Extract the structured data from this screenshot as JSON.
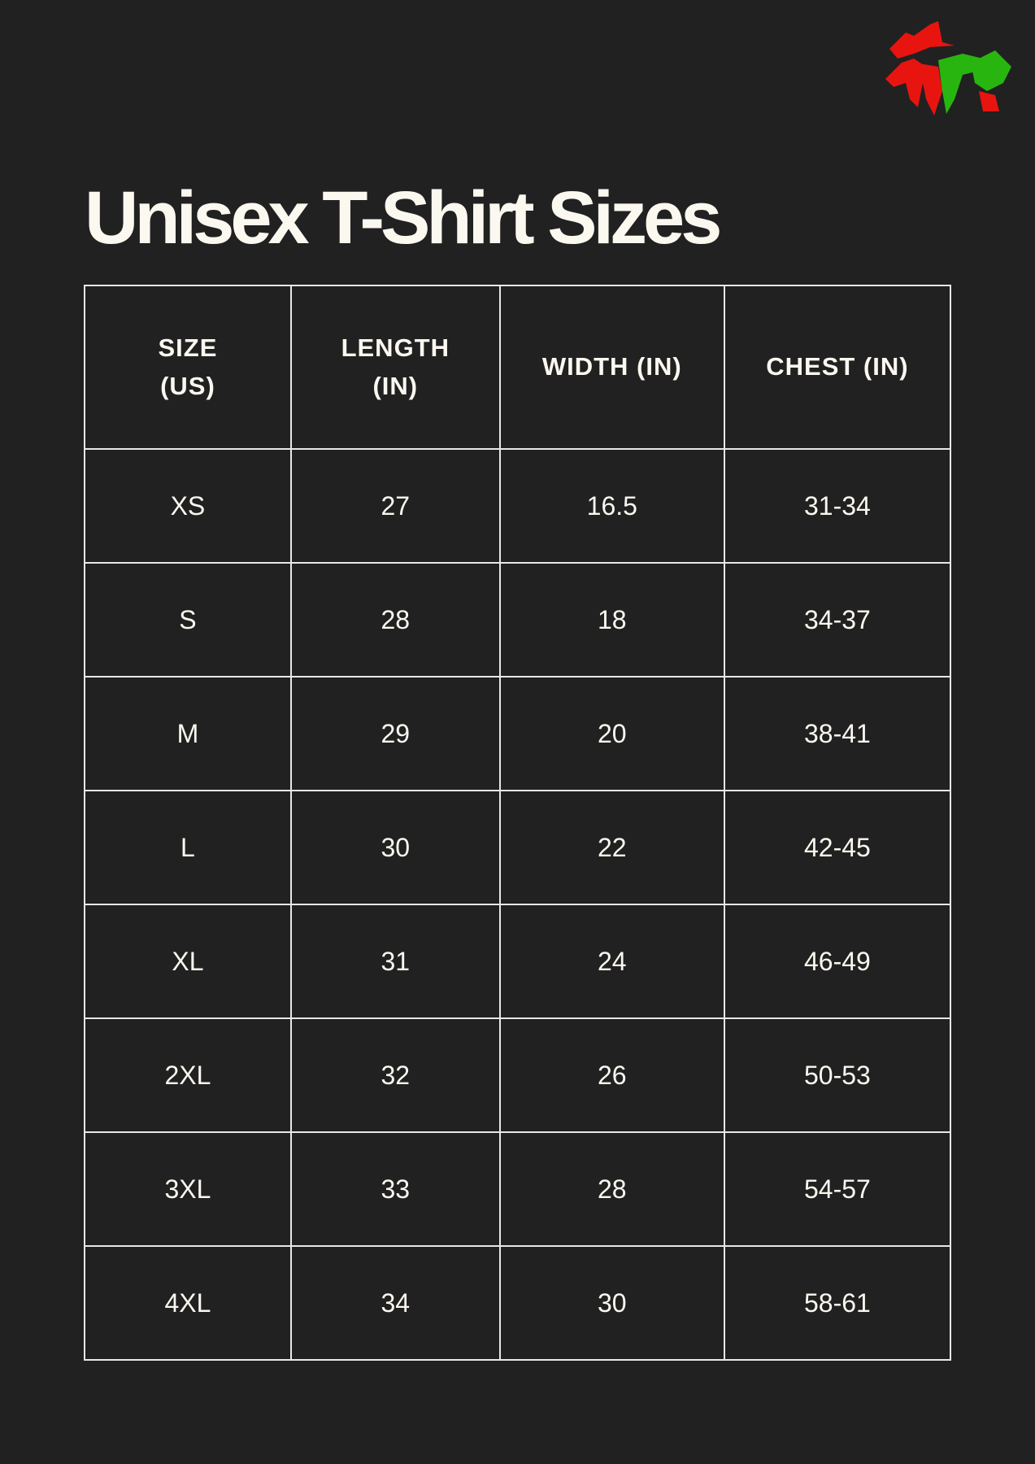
{
  "title": "Unisex T-Shirt Sizes",
  "logo": {
    "icon": "wizard-logo-icon",
    "colors": [
      "#e8140f",
      "#29b50f"
    ]
  },
  "table": {
    "headers": [
      "SIZE (US)",
      "LENGTH (IN)",
      "WIDTH (IN)",
      "CHEST (IN)"
    ],
    "rows": [
      [
        "XS",
        "27",
        "16.5",
        "31-34"
      ],
      [
        "S",
        "28",
        "18",
        "34-37"
      ],
      [
        "M",
        "29",
        "20",
        "38-41"
      ],
      [
        "L",
        "30",
        "22",
        "42-45"
      ],
      [
        "XL",
        "31",
        "24",
        "46-49"
      ],
      [
        "2XL",
        "32",
        "26",
        "50-53"
      ],
      [
        "3XL",
        "33",
        "28",
        "54-57"
      ],
      [
        "4XL",
        "34",
        "30",
        "58-61"
      ]
    ]
  }
}
